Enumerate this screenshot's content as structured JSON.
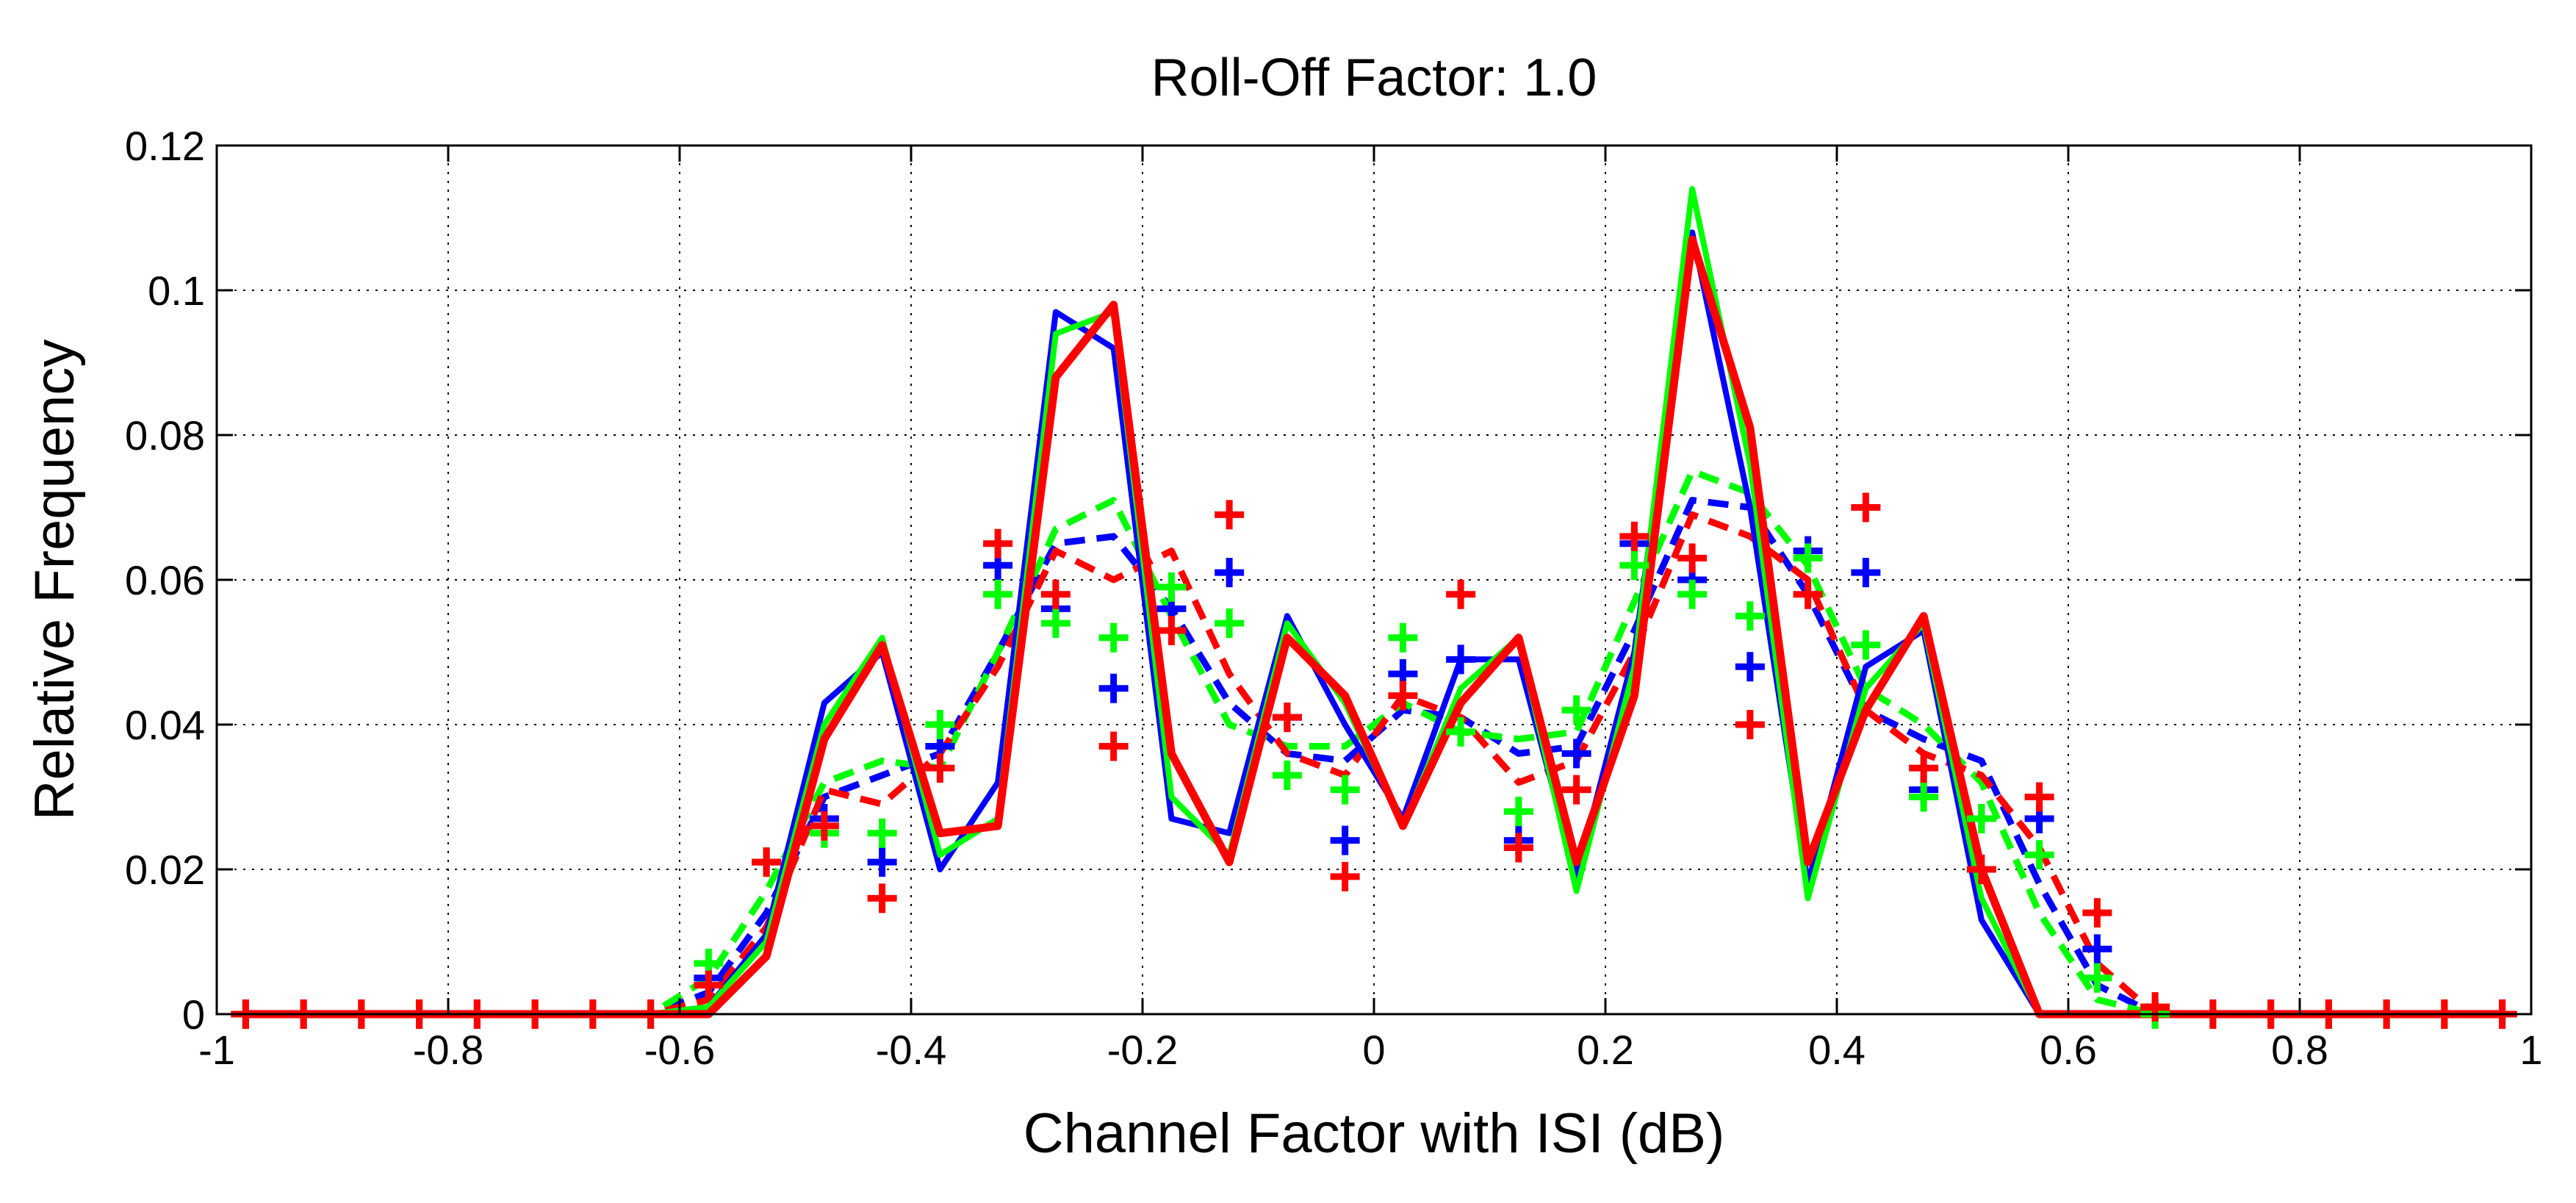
{
  "chart_data": {
    "type": "line",
    "title": "Roll-Off Factor: 1.0",
    "xlabel": "Channel Factor with ISI (dB)",
    "ylabel": "Relative Frequency",
    "xlim": [
      -1,
      1
    ],
    "ylim": [
      0,
      0.12
    ],
    "grid": true,
    "xticks": [
      -1,
      -0.8,
      -0.6,
      -0.4,
      -0.2,
      0,
      0.2,
      0.4,
      0.6,
      0.8,
      1
    ],
    "xtick_labels": [
      "-1",
      "-0.8",
      "-0.6",
      "-0.4",
      "-0.2",
      "0",
      "0.2",
      "0.4",
      "0.6",
      "0.8",
      "1"
    ],
    "yticks": [
      0,
      0.02,
      0.04,
      0.06,
      0.08,
      0.1,
      0.12
    ],
    "ytick_labels": [
      "0",
      "0.02",
      "0.04",
      "0.06",
      "0.08",
      "0.1",
      "0.12"
    ],
    "x": [
      -0.975,
      -0.925,
      -0.875,
      -0.825,
      -0.775,
      -0.725,
      -0.675,
      -0.625,
      -0.575,
      -0.525,
      -0.475,
      -0.425,
      -0.375,
      -0.325,
      -0.275,
      -0.225,
      -0.175,
      -0.125,
      -0.075,
      -0.025,
      0.025,
      0.075,
      0.125,
      0.175,
      0.225,
      0.275,
      0.325,
      0.375,
      0.425,
      0.475,
      0.525,
      0.575,
      0.625,
      0.675,
      0.725,
      0.775,
      0.825,
      0.875,
      0.925,
      0.975
    ],
    "series": [
      {
        "name": "blue-solid",
        "color": "#0000ff",
        "style": "solid",
        "values": [
          0,
          0,
          0,
          0,
          0,
          0,
          0,
          0,
          0.001,
          0.011,
          0.043,
          0.05,
          0.02,
          0.032,
          0.097,
          0.092,
          0.027,
          0.025,
          0.055,
          0.04,
          0.027,
          0.049,
          0.049,
          0.019,
          0.05,
          0.108,
          0.07,
          0.018,
          0.048,
          0.053,
          0.013,
          0,
          0,
          0,
          0,
          0,
          0,
          0,
          0,
          0
        ]
      },
      {
        "name": "green-solid",
        "color": "#00ff00",
        "style": "solid",
        "values": [
          0,
          0,
          0,
          0,
          0,
          0,
          0,
          0,
          0.001,
          0.01,
          0.04,
          0.052,
          0.022,
          0.027,
          0.094,
          0.097,
          0.03,
          0.022,
          0.054,
          0.043,
          0.026,
          0.045,
          0.052,
          0.017,
          0.048,
          0.114,
          0.076,
          0.016,
          0.045,
          0.054,
          0.016,
          0,
          0,
          0,
          0,
          0,
          0,
          0,
          0,
          0
        ]
      },
      {
        "name": "red-solid",
        "color": "#ff0000",
        "style": "solid",
        "values": [
          0,
          0,
          0,
          0,
          0,
          0,
          0,
          0,
          0,
          0.008,
          0.038,
          0.051,
          0.025,
          0.026,
          0.088,
          0.098,
          0.036,
          0.021,
          0.052,
          0.044,
          0.026,
          0.043,
          0.052,
          0.021,
          0.044,
          0.107,
          0.081,
          0.021,
          0.042,
          0.055,
          0.02,
          0,
          0,
          0,
          0,
          0,
          0,
          0,
          0,
          0
        ]
      },
      {
        "name": "blue-dashed",
        "color": "#0000ff",
        "style": "dashed",
        "values": [
          0,
          0,
          0,
          0,
          0,
          0,
          0,
          0,
          0.003,
          0.014,
          0.03,
          0.033,
          0.036,
          0.05,
          0.065,
          0.066,
          0.056,
          0.043,
          0.036,
          0.035,
          0.042,
          0.041,
          0.036,
          0.037,
          0.053,
          0.071,
          0.07,
          0.058,
          0.042,
          0.038,
          0.035,
          0.018,
          0.004,
          0,
          0,
          0,
          0,
          0,
          0,
          0
        ]
      },
      {
        "name": "green-dashed",
        "color": "#00ff00",
        "style": "dashed",
        "values": [
          0,
          0,
          0,
          0,
          0,
          0,
          0,
          0,
          0.005,
          0.017,
          0.032,
          0.035,
          0.034,
          0.05,
          0.067,
          0.071,
          0.055,
          0.04,
          0.037,
          0.037,
          0.043,
          0.039,
          0.038,
          0.039,
          0.057,
          0.075,
          0.072,
          0.062,
          0.045,
          0.04,
          0.032,
          0.014,
          0.002,
          0,
          0,
          0,
          0,
          0,
          0,
          0
        ]
      },
      {
        "name": "red-dashed",
        "color": "#ff0000",
        "style": "dashed",
        "values": [
          0,
          0,
          0,
          0,
          0,
          0,
          0,
          0,
          0.002,
          0.012,
          0.031,
          0.029,
          0.036,
          0.048,
          0.064,
          0.06,
          0.064,
          0.047,
          0.036,
          0.033,
          0.044,
          0.041,
          0.032,
          0.035,
          0.05,
          0.069,
          0.066,
          0.06,
          0.042,
          0.036,
          0.033,
          0.023,
          0.007,
          0,
          0,
          0,
          0,
          0,
          0,
          0
        ]
      },
      {
        "name": "blue-markers",
        "color": "#0000ff",
        "style": "plus",
        "values": [
          0,
          0,
          0,
          0,
          0,
          0,
          0,
          0,
          0.005,
          0.021,
          0.027,
          0.021,
          0.037,
          0.062,
          0.056,
          0.045,
          0.056,
          0.061,
          0.041,
          0.024,
          0.047,
          0.049,
          0.024,
          0.036,
          0.065,
          0.06,
          0.048,
          0.064,
          0.061,
          0.031,
          0.027,
          0.027,
          0.009,
          0,
          0,
          0,
          0,
          0,
          0,
          0
        ]
      },
      {
        "name": "green-markers",
        "color": "#00ff00",
        "style": "plus",
        "values": [
          0,
          0,
          0,
          0,
          0,
          0,
          0,
          0,
          0.007,
          0.021,
          0.025,
          0.025,
          0.04,
          0.058,
          0.054,
          0.052,
          0.059,
          0.054,
          0.033,
          0.031,
          0.052,
          0.039,
          0.028,
          0.042,
          0.062,
          0.058,
          0.055,
          0.063,
          0.051,
          0.03,
          0.027,
          0.022,
          0.005,
          0,
          0,
          0,
          0,
          0,
          0,
          0
        ]
      },
      {
        "name": "red-markers",
        "color": "#ff0000",
        "style": "plus",
        "values": [
          0,
          0,
          0,
          0,
          0,
          0,
          0,
          0,
          0.004,
          0.021,
          0.026,
          0.016,
          0.034,
          0.065,
          0.058,
          0.037,
          0.053,
          0.069,
          0.041,
          0.019,
          0.044,
          0.058,
          0.023,
          0.031,
          0.066,
          0.063,
          0.04,
          0.058,
          0.07,
          0.034,
          0.02,
          0.03,
          0.014,
          0.001,
          0,
          0,
          0,
          0,
          0,
          0
        ]
      }
    ]
  }
}
